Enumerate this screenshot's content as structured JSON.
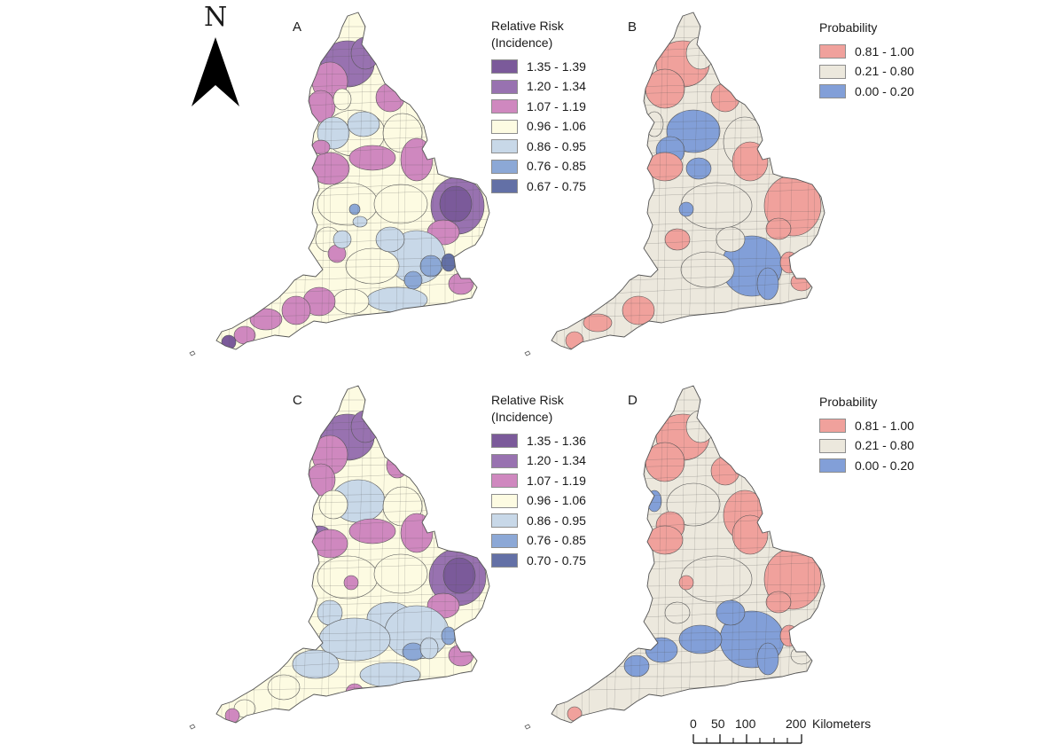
{
  "north_arrow": {
    "letter": "N"
  },
  "panels": [
    {
      "id": "A",
      "letter": "A",
      "kind": "relative-risk"
    },
    {
      "id": "B",
      "letter": "B",
      "kind": "probability"
    },
    {
      "id": "C",
      "letter": "C",
      "kind": "relative-risk"
    },
    {
      "id": "D",
      "letter": "D",
      "kind": "probability"
    }
  ],
  "legends": {
    "A": {
      "title": "Relative Risk\n(Incidence)",
      "classes": [
        {
          "label": "1.35 - 1.39",
          "color": "#7b5a9a"
        },
        {
          "label": "1.20 - 1.34",
          "color": "#9872b0"
        },
        {
          "label": "1.07 - 1.19",
          "color": "#cf88bf"
        },
        {
          "label": "0.96 - 1.06",
          "color": "#fdfbe2"
        },
        {
          "label": "0.86 - 0.95",
          "color": "#c8d8e8"
        },
        {
          "label": "0.76 - 0.85",
          "color": "#8ca8d6"
        },
        {
          "label": "0.67 - 0.75",
          "color": "#6370a6"
        }
      ]
    },
    "B": {
      "title": "Probability",
      "classes": [
        {
          "label": "0.81 - 1.00",
          "color": "#f0a19c"
        },
        {
          "label": "0.21 - 0.80",
          "color": "#ece8dd"
        },
        {
          "label": "0.00 - 0.20",
          "color": "#829fd8"
        }
      ]
    },
    "C": {
      "title": "Relative Risk\n(Incidence)",
      "classes": [
        {
          "label": "1.35 - 1.36",
          "color": "#7b5a9a"
        },
        {
          "label": "1.20 - 1.34",
          "color": "#9872b0"
        },
        {
          "label": "1.07 - 1.19",
          "color": "#cf88bf"
        },
        {
          "label": "0.96 - 1.06",
          "color": "#fdfbe2"
        },
        {
          "label": "0.86 - 0.95",
          "color": "#c8d8e8"
        },
        {
          "label": "0.76 - 0.85",
          "color": "#8ca8d6"
        },
        {
          "label": "0.70 - 0.75",
          "color": "#6370a6"
        }
      ]
    },
    "D": {
      "title": "Probability",
      "classes": [
        {
          "label": "0.81 - 1.00",
          "color": "#f0a19c"
        },
        {
          "label": "0.21 - 0.80",
          "color": "#ece8dd"
        },
        {
          "label": "0.00 - 0.20",
          "color": "#829fd8"
        }
      ]
    }
  },
  "scale_bar": {
    "ticks": [
      "0",
      "50",
      "100",
      "200"
    ],
    "unit": "Kilometers"
  },
  "colors": {
    "boundary": "#555555",
    "background": "#ffffff"
  }
}
